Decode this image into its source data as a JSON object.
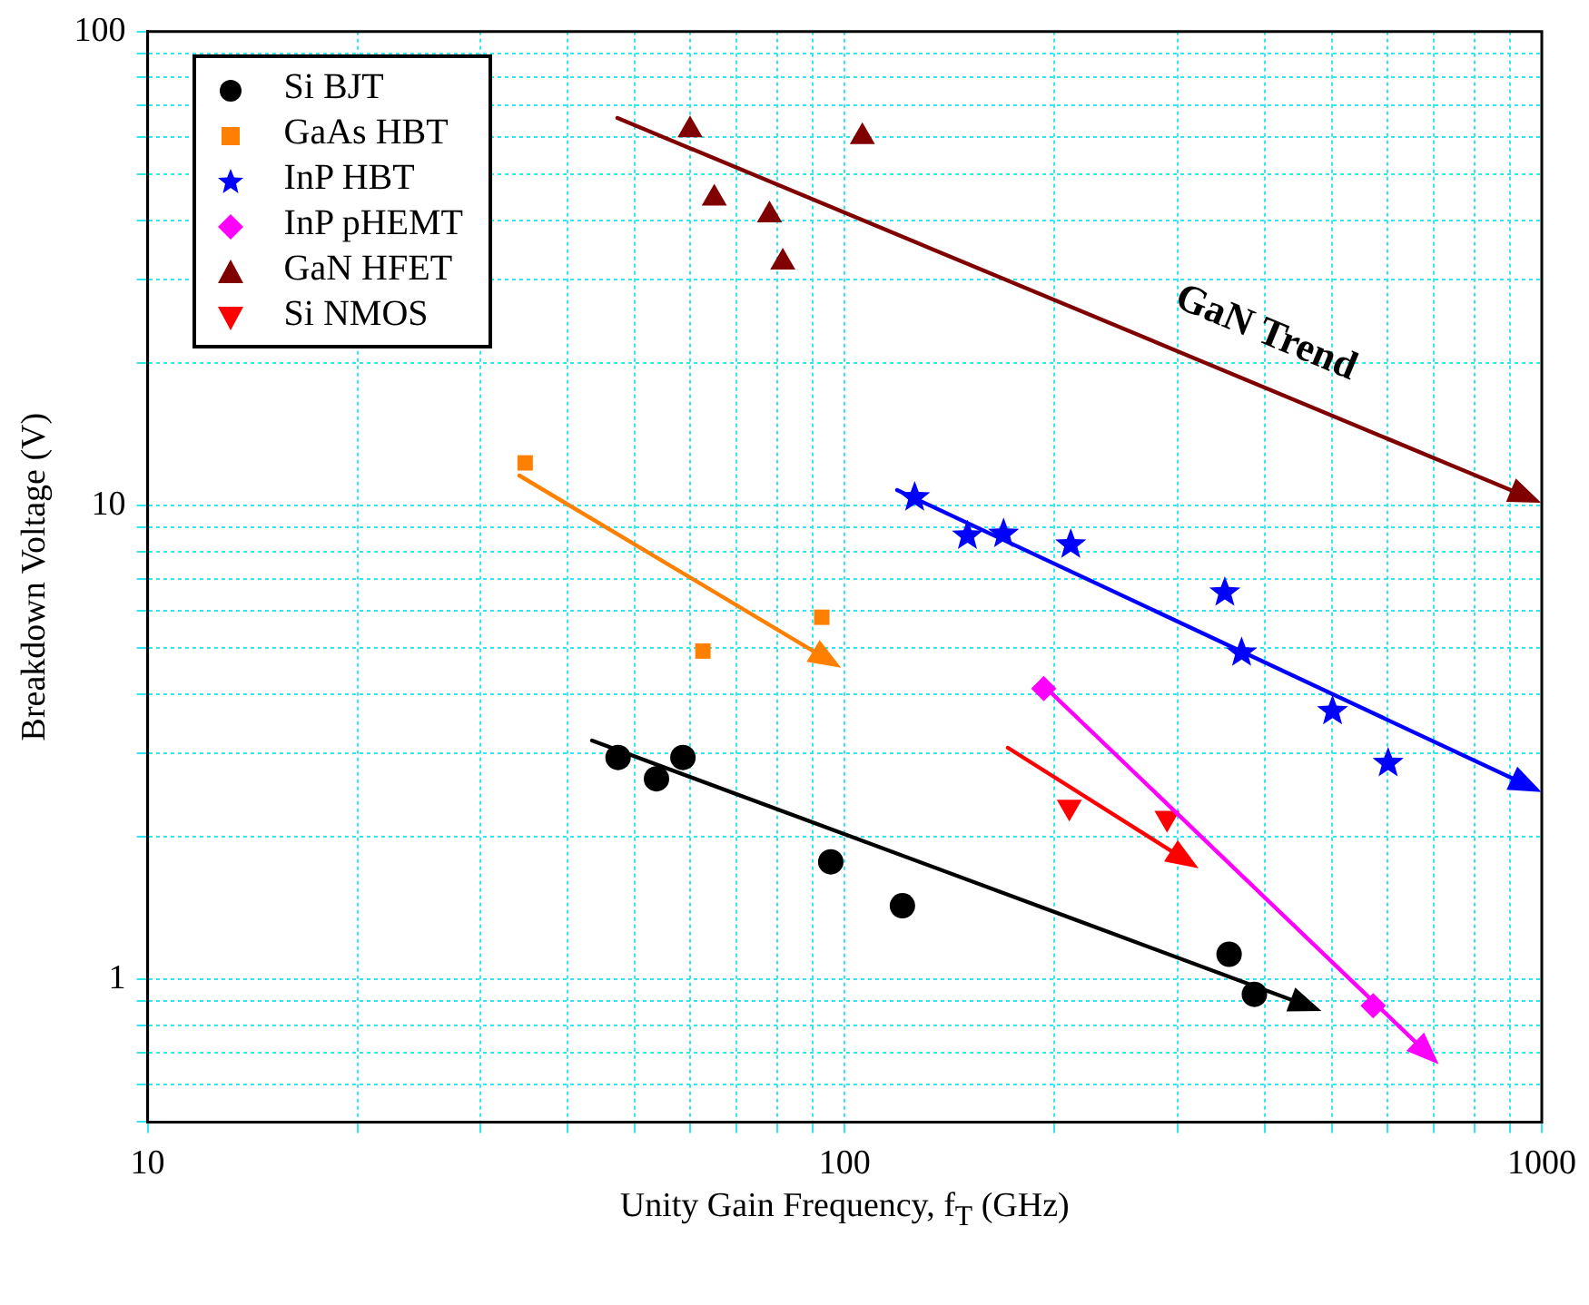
{
  "chart_data": {
    "type": "scatter",
    "xlabel": "Unity Gain Frequency, f$_{T}$ (GHz)",
    "ylabel": "Breakdown Voltage (V)",
    "log": "xy",
    "xlim": [
      10,
      1000
    ],
    "ylim": [
      0.5,
      100
    ],
    "xticks": [
      10,
      {
        "value": 20,
        "label": null
      },
      {
        "value": 30,
        "label": null
      },
      {
        "value": 40,
        "label": null
      },
      {
        "value": 50,
        "label": null
      },
      {
        "value": 60,
        "label": null
      },
      {
        "value": 70,
        "label": null
      },
      {
        "value": 80,
        "label": null
      },
      {
        "value": 90,
        "label": null
      },
      100,
      {
        "value": 200,
        "label": null
      },
      {
        "value": 300,
        "label": null
      },
      {
        "value": 400,
        "label": null
      },
      {
        "value": 500,
        "label": null
      },
      {
        "value": 600,
        "label": null
      },
      {
        "value": 700,
        "label": null
      },
      {
        "value": 800,
        "label": null
      },
      {
        "value": 900,
        "label": null
      },
      1000
    ],
    "yticks": [
      {
        "value": 0.5,
        "label": null
      },
      {
        "value": 0.6,
        "label": null
      },
      {
        "value": 0.7,
        "label": null
      },
      {
        "value": 0.8,
        "label": null
      },
      {
        "value": 0.9,
        "label": null
      },
      1,
      {
        "value": 2,
        "label": null
      },
      {
        "value": 3,
        "label": null
      },
      {
        "value": 4,
        "label": null
      },
      {
        "value": 5,
        "label": null
      },
      {
        "value": 6,
        "label": null
      },
      {
        "value": 7,
        "label": null
      },
      {
        "value": 8,
        "label": null
      },
      {
        "value": 9,
        "label": null
      },
      10,
      {
        "value": 20,
        "label": null
      },
      {
        "value": 30,
        "label": null
      },
      {
        "value": 40,
        "label": null
      },
      {
        "value": 50,
        "label": null
      },
      {
        "value": 60,
        "label": null
      },
      {
        "value": 70,
        "label": null
      },
      {
        "value": 80,
        "label": null
      },
      {
        "value": 90,
        "label": null
      },
      100
    ],
    "grid": true,
    "legend": "top left",
    "annotations": [
      "GaN Trend"
    ],
    "series": [
      {
        "name": "Si BJT",
        "color": "#000000",
        "marker": "circle",
        "x": [
          47.3,
          53.7,
          58.6,
          95.5,
          121,
          356,
          387
        ],
        "values": [
          2.94,
          2.65,
          2.94,
          1.77,
          1.43,
          1.13,
          0.93
        ]
      },
      {
        "name": "GaAs HBT",
        "color": "#ff8000",
        "marker": "square",
        "x": [
          34.8,
          62.6,
          92.7
        ],
        "values": [
          12.3,
          4.93,
          5.81
        ]
      },
      {
        "name": "InP HBT",
        "color": "#0000ff",
        "marker": "star",
        "x": [
          126,
          150,
          169,
          211,
          351,
          371,
          501,
          602
        ],
        "values": [
          10.4,
          8.63,
          8.71,
          8.27,
          6.55,
          4.89,
          3.68,
          2.86
        ]
      },
      {
        "name": "InP pHEMT",
        "color": "#ff00ff",
        "marker": "diamond",
        "x": [
          193,
          573
        ],
        "values": [
          4.11,
          0.88
        ]
      },
      {
        "name": "GaN HFET",
        "color": "#800000",
        "marker": "triangle",
        "x": [
          60,
          65,
          78,
          81.5,
          106
        ],
        "values": [
          62,
          44.5,
          41,
          32.6,
          60
        ]
      },
      {
        "name": "Si NMOS",
        "color": "#ff0000",
        "marker": "triangle-down",
        "x": [
          210,
          290
        ],
        "values": [
          2.31,
          2.19
        ]
      }
    ]
  }
}
